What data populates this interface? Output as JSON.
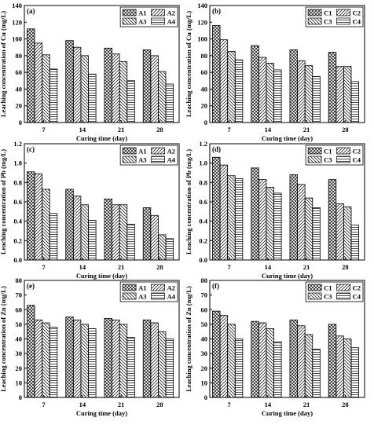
{
  "figure": {
    "background": "#ffffff",
    "bar_fill": "#ffffff",
    "stroke": "#000000"
  },
  "chart_data": [
    {
      "panel": "(a)",
      "type": "bar",
      "categories": [
        "7",
        "14",
        "21",
        "28"
      ],
      "xlabel": "Curing time (day)",
      "ylabel": "Leaching concentration of Cu (mg/L)",
      "ylim": [
        0,
        140
      ],
      "yticks": [
        0,
        20,
        40,
        60,
        80,
        100,
        120,
        140
      ],
      "grid": false,
      "legend": "top-right",
      "series": [
        {
          "name": "A1",
          "pattern": "crosshatch",
          "values": [
            112,
            98,
            89,
            87
          ]
        },
        {
          "name": "A2",
          "pattern": "diag-right",
          "values": [
            95,
            90,
            82,
            80
          ]
        },
        {
          "name": "A3",
          "pattern": "diag-left",
          "values": [
            81,
            80,
            73,
            61
          ]
        },
        {
          "name": "A4",
          "pattern": "horizontal",
          "values": [
            64,
            58,
            50,
            46
          ]
        }
      ]
    },
    {
      "panel": "(b)",
      "type": "bar",
      "categories": [
        "7",
        "14",
        "21",
        "28"
      ],
      "xlabel": "Curing time (day)",
      "ylabel": "Leaching concentration of Cu (mg/L)",
      "ylim": [
        0,
        140
      ],
      "yticks": [
        0,
        20,
        40,
        60,
        80,
        100,
        120,
        140
      ],
      "grid": false,
      "legend": "top-right",
      "series": [
        {
          "name": "C1",
          "pattern": "crosshatch",
          "values": [
            116,
            92,
            87,
            84
          ]
        },
        {
          "name": "C2",
          "pattern": "diag-right",
          "values": [
            99,
            78,
            74,
            67
          ]
        },
        {
          "name": "C3",
          "pattern": "diag-left",
          "values": [
            85,
            71,
            68,
            67
          ]
        },
        {
          "name": "C4",
          "pattern": "horizontal",
          "values": [
            75,
            63,
            55,
            49
          ]
        }
      ]
    },
    {
      "panel": "(c)",
      "type": "bar",
      "categories": [
        "7",
        "14",
        "21",
        "28"
      ],
      "xlabel": "Curing time (day)",
      "ylabel": "Leaching concentration of Pb (mg/L)",
      "ylim": [
        0,
        1.2
      ],
      "yticks": [
        0.0,
        0.2,
        0.4,
        0.6,
        0.8,
        1.0,
        1.2
      ],
      "grid": false,
      "legend": "top-right",
      "series": [
        {
          "name": "A1",
          "pattern": "crosshatch",
          "values": [
            0.91,
            0.73,
            0.63,
            0.54
          ]
        },
        {
          "name": "A2",
          "pattern": "diag-right",
          "values": [
            0.89,
            0.66,
            0.57,
            0.46
          ]
        },
        {
          "name": "A3",
          "pattern": "diag-left",
          "values": [
            0.73,
            0.57,
            0.57,
            0.26
          ]
        },
        {
          "name": "A4",
          "pattern": "horizontal",
          "values": [
            0.48,
            0.41,
            0.37,
            0.22
          ]
        }
      ]
    },
    {
      "panel": "(d)",
      "type": "bar",
      "categories": [
        "7",
        "14",
        "21",
        "28"
      ],
      "xlabel": "Curing time (day)",
      "ylabel": "Leaching concentration of Pb (mg/L)",
      "ylim": [
        0,
        1.2
      ],
      "yticks": [
        0.0,
        0.2,
        0.4,
        0.6,
        0.8,
        1.0,
        1.2
      ],
      "grid": false,
      "legend": "top-right",
      "series": [
        {
          "name": "C1",
          "pattern": "crosshatch",
          "values": [
            1.06,
            0.95,
            0.88,
            0.83
          ]
        },
        {
          "name": "C2",
          "pattern": "diag-right",
          "values": [
            0.98,
            0.83,
            0.78,
            0.58
          ]
        },
        {
          "name": "C3",
          "pattern": "diag-left",
          "values": [
            0.87,
            0.75,
            0.64,
            0.55
          ]
        },
        {
          "name": "C4",
          "pattern": "horizontal",
          "values": [
            0.84,
            0.69,
            0.54,
            0.36
          ]
        }
      ]
    },
    {
      "panel": "(e)",
      "type": "bar",
      "categories": [
        "7",
        "14",
        "21",
        "28"
      ],
      "xlabel": "Curing time (day)",
      "ylabel": "Leaching concentration of Zn (mg/L)",
      "ylim": [
        0,
        80
      ],
      "yticks": [
        0,
        10,
        20,
        30,
        40,
        50,
        60,
        70,
        80
      ],
      "grid": false,
      "legend": "top-right",
      "series": [
        {
          "name": "A1",
          "pattern": "crosshatch",
          "values": [
            63,
            55,
            54,
            53
          ]
        },
        {
          "name": "A2",
          "pattern": "diag-right",
          "values": [
            53,
            53,
            53,
            51
          ]
        },
        {
          "name": "A3",
          "pattern": "diag-left",
          "values": [
            51,
            50,
            50,
            45
          ]
        },
        {
          "name": "A4",
          "pattern": "horizontal",
          "values": [
            48,
            47,
            41,
            40
          ]
        }
      ]
    },
    {
      "panel": "(f)",
      "type": "bar",
      "categories": [
        "7",
        "14",
        "21",
        "28"
      ],
      "xlabel": "Curing time (day)",
      "ylabel": "Leaching concentration of Zn (mg/L)",
      "ylim": [
        0,
        80
      ],
      "yticks": [
        0,
        10,
        20,
        30,
        40,
        50,
        60,
        70,
        80
      ],
      "grid": false,
      "legend": "top-right",
      "series": [
        {
          "name": "C1",
          "pattern": "crosshatch",
          "values": [
            59,
            52,
            53,
            50
          ]
        },
        {
          "name": "C2",
          "pattern": "diag-right",
          "values": [
            56,
            51,
            49,
            42
          ]
        },
        {
          "name": "C3",
          "pattern": "diag-left",
          "values": [
            50,
            47,
            43,
            40
          ]
        },
        {
          "name": "C4",
          "pattern": "horizontal",
          "values": [
            40,
            38,
            33,
            34
          ]
        }
      ]
    }
  ]
}
